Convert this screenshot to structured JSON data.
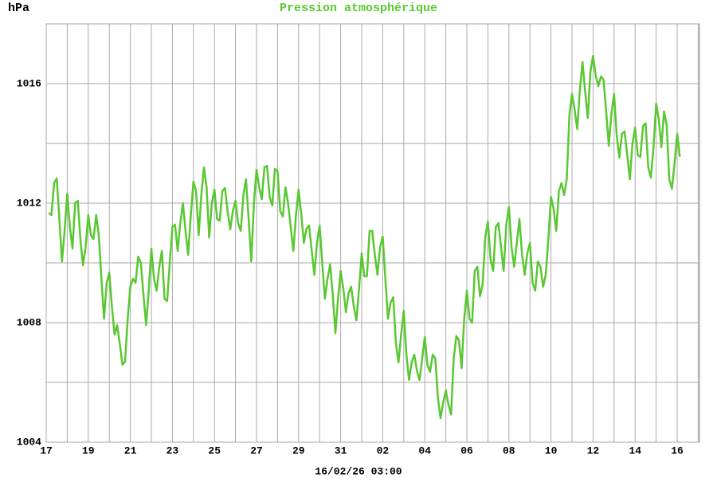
{
  "chart_data": {
    "type": "line",
    "title": "Pression atmosphérique",
    "y_unit": "hPa",
    "x_label": "16/02/26 03:00",
    "color": "#5ac832",
    "grid": true,
    "xlim": [
      0,
      31.06
    ],
    "ylim": [
      1004,
      1018
    ],
    "xticks": [
      {
        "value": 0,
        "label": "17"
      },
      {
        "value": 2,
        "label": "19"
      },
      {
        "value": 4,
        "label": "21"
      },
      {
        "value": 6,
        "label": "23"
      },
      {
        "value": 8,
        "label": "25"
      },
      {
        "value": 10,
        "label": "27"
      },
      {
        "value": 12,
        "label": "29"
      },
      {
        "value": 14,
        "label": "31"
      },
      {
        "value": 16,
        "label": "02"
      },
      {
        "value": 18,
        "label": "04"
      },
      {
        "value": 20,
        "label": "06"
      },
      {
        "value": 22,
        "label": "08"
      },
      {
        "value": 24,
        "label": "10"
      },
      {
        "value": 26,
        "label": "12"
      },
      {
        "value": 28,
        "label": "14"
      },
      {
        "value": 30,
        "label": "16"
      }
    ],
    "x_minor_ticks": [
      1,
      3,
      5,
      7,
      9,
      11,
      13,
      15,
      17,
      19,
      21,
      23,
      25,
      27,
      29,
      31
    ],
    "yticks": [
      1004,
      1008,
      1012,
      1016
    ],
    "y_minor_ticks": [
      1006,
      1010,
      1014,
      1018
    ],
    "x": [
      0.125,
      0.25,
      0.375,
      0.5,
      0.625,
      0.75,
      0.875,
      1,
      1.125,
      1.25,
      1.375,
      1.5,
      1.625,
      1.75,
      1.875,
      2,
      2.125,
      2.25,
      2.375,
      2.5,
      2.625,
      2.75,
      2.875,
      3,
      3.125,
      3.25,
      3.375,
      3.5,
      3.625,
      3.75,
      3.875,
      4,
      4.125,
      4.25,
      4.375,
      4.5,
      4.625,
      4.75,
      4.875,
      5,
      5.125,
      5.25,
      5.375,
      5.5,
      5.625,
      5.75,
      5.875,
      6,
      6.125,
      6.25,
      6.375,
      6.5,
      6.625,
      6.75,
      6.875,
      7,
      7.125,
      7.25,
      7.375,
      7.5,
      7.625,
      7.75,
      7.875,
      8,
      8.125,
      8.25,
      8.375,
      8.5,
      8.625,
      8.75,
      8.875,
      9,
      9.125,
      9.25,
      9.375,
      9.5,
      9.625,
      9.75,
      9.875,
      10,
      10.125,
      10.25,
      10.375,
      10.5,
      10.625,
      10.75,
      10.875,
      11,
      11.125,
      11.25,
      11.375,
      11.5,
      11.625,
      11.75,
      11.875,
      12,
      12.125,
      12.25,
      12.375,
      12.5,
      12.625,
      12.75,
      12.875,
      13,
      13.125,
      13.25,
      13.375,
      13.5,
      13.625,
      13.75,
      13.875,
      14,
      14.125,
      14.25,
      14.375,
      14.5,
      14.625,
      14.75,
      14.875,
      15,
      15.125,
      15.25,
      15.375,
      15.5,
      15.625,
      15.75,
      15.875,
      16,
      16.125,
      16.25,
      16.375,
      16.5,
      16.625,
      16.75,
      16.875,
      17,
      17.125,
      17.25,
      17.375,
      17.5,
      17.625,
      17.75,
      17.875,
      18,
      18.125,
      18.25,
      18.375,
      18.5,
      18.625,
      18.75,
      18.875,
      19,
      19.125,
      19.25,
      19.375,
      19.5,
      19.625,
      19.75,
      19.875,
      20,
      20.125,
      20.25,
      20.375,
      20.5,
      20.625,
      20.75,
      20.875,
      21,
      21.125,
      21.25,
      21.375,
      21.5,
      21.625,
      21.75,
      21.875,
      22,
      22.125,
      22.25,
      22.375,
      22.5,
      22.625,
      22.75,
      22.875,
      23,
      23.125,
      23.25,
      23.375,
      23.5,
      23.625,
      23.75,
      23.875,
      24,
      24.125,
      24.25,
      24.375,
      24.5,
      24.625,
      24.75,
      24.875,
      25,
      25.125,
      25.25,
      25.375,
      25.5,
      25.625,
      25.75,
      25.875,
      26,
      26.125,
      26.25,
      26.375,
      26.5,
      26.625,
      26.75,
      26.875,
      27,
      27.125,
      27.25,
      27.375,
      27.5,
      27.625,
      27.75,
      27.875,
      28,
      28.125,
      28.25,
      28.375,
      28.5,
      28.625,
      28.75,
      28.875,
      29,
      29.125,
      29.25,
      29.375,
      29.5,
      29.625,
      29.75,
      29.875,
      30,
      30.125
    ],
    "values": [
      1011.68,
      1011.6,
      1012.67,
      1012.83,
      1011.47,
      1010.05,
      1011.07,
      1012.32,
      1011.2,
      1010.48,
      1012,
      1012.08,
      1010.8,
      1009.92,
      1010.53,
      1011.6,
      1010.93,
      1010.8,
      1011.6,
      1010.93,
      1009.47,
      1008.13,
      1009.33,
      1009.68,
      1008.53,
      1007.6,
      1007.92,
      1007.28,
      1006.59,
      1006.69,
      1008.13,
      1009.2,
      1009.47,
      1009.33,
      1010.21,
      1010,
      1008.93,
      1007.92,
      1009.07,
      1010.48,
      1009.47,
      1009.07,
      1009.87,
      1010.4,
      1008.8,
      1008.72,
      1010,
      1011.2,
      1011.28,
      1010.4,
      1011.33,
      1012,
      1011.07,
      1010.27,
      1011.6,
      1012.72,
      1012.4,
      1010.93,
      1012.27,
      1013.2,
      1012.53,
      1010.85,
      1012,
      1012.45,
      1011.47,
      1011.41,
      1012.4,
      1012.51,
      1011.73,
      1011.12,
      1011.73,
      1012.08,
      1011.33,
      1011.07,
      1012.27,
      1012.8,
      1011.47,
      1010.05,
      1012,
      1013.12,
      1012.53,
      1012.13,
      1013.2,
      1013.25,
      1012.19,
      1011.92,
      1013.15,
      1013.07,
      1011.73,
      1011.55,
      1012.53,
      1012,
      1011.2,
      1010.4,
      1011.6,
      1012.45,
      1011.65,
      1010.67,
      1011.15,
      1011.25,
      1010.4,
      1009.6,
      1010.67,
      1011.25,
      1010,
      1008.8,
      1009.47,
      1009.95,
      1008.93,
      1007.65,
      1008.8,
      1009.73,
      1009.15,
      1008.35,
      1008.99,
      1009.2,
      1008.53,
      1008.08,
      1009.15,
      1010.32,
      1009.55,
      1009.55,
      1011.07,
      1011.07,
      1010.27,
      1009.6,
      1010.53,
      1010.88,
      1009.47,
      1008.13,
      1008.67,
      1008.85,
      1007.33,
      1006.67,
      1007.6,
      1008.4,
      1006.93,
      1006.08,
      1006.67,
      1006.93,
      1006.4,
      1006.08,
      1006.8,
      1007.52,
      1006.59,
      1006.35,
      1006.93,
      1006.8,
      1005.47,
      1004.8,
      1005.33,
      1005.73,
      1005.25,
      1004.93,
      1006.8,
      1007.55,
      1007.41,
      1006.48,
      1008.13,
      1009.07,
      1008.13,
      1008,
      1009.73,
      1009.87,
      1008.88,
      1009.28,
      1010.85,
      1011.39,
      1010.13,
      1009.73,
      1011.2,
      1011.33,
      1010.53,
      1009.73,
      1011.28,
      1011.87,
      1010.53,
      1009.87,
      1010.67,
      1011.47,
      1010.27,
      1009.6,
      1010.32,
      1010.67,
      1009.33,
      1009.07,
      1010.05,
      1009.87,
      1009.2,
      1009.6,
      1010.8,
      1012.21,
      1011.81,
      1011.07,
      1012.4,
      1012.67,
      1012.27,
      1012.8,
      1014.93,
      1015.65,
      1015.12,
      1014.48,
      1015.81,
      1016.72,
      1015.73,
      1014.85,
      1016.4,
      1016.93,
      1016.27,
      1015.92,
      1016.24,
      1016.13,
      1015.07,
      1013.92,
      1015.01,
      1015.65,
      1014.27,
      1013.52,
      1014.32,
      1014.4,
      1013.6,
      1012.8,
      1014,
      1014.53,
      1013.6,
      1013.55,
      1014.59,
      1014.67,
      1013.2,
      1012.85,
      1013.87,
      1015.33,
      1014.8,
      1013.87,
      1015.07,
      1014.61,
      1012.8,
      1012.48,
      1013.33,
      1014.32,
      1013.55
    ]
  }
}
